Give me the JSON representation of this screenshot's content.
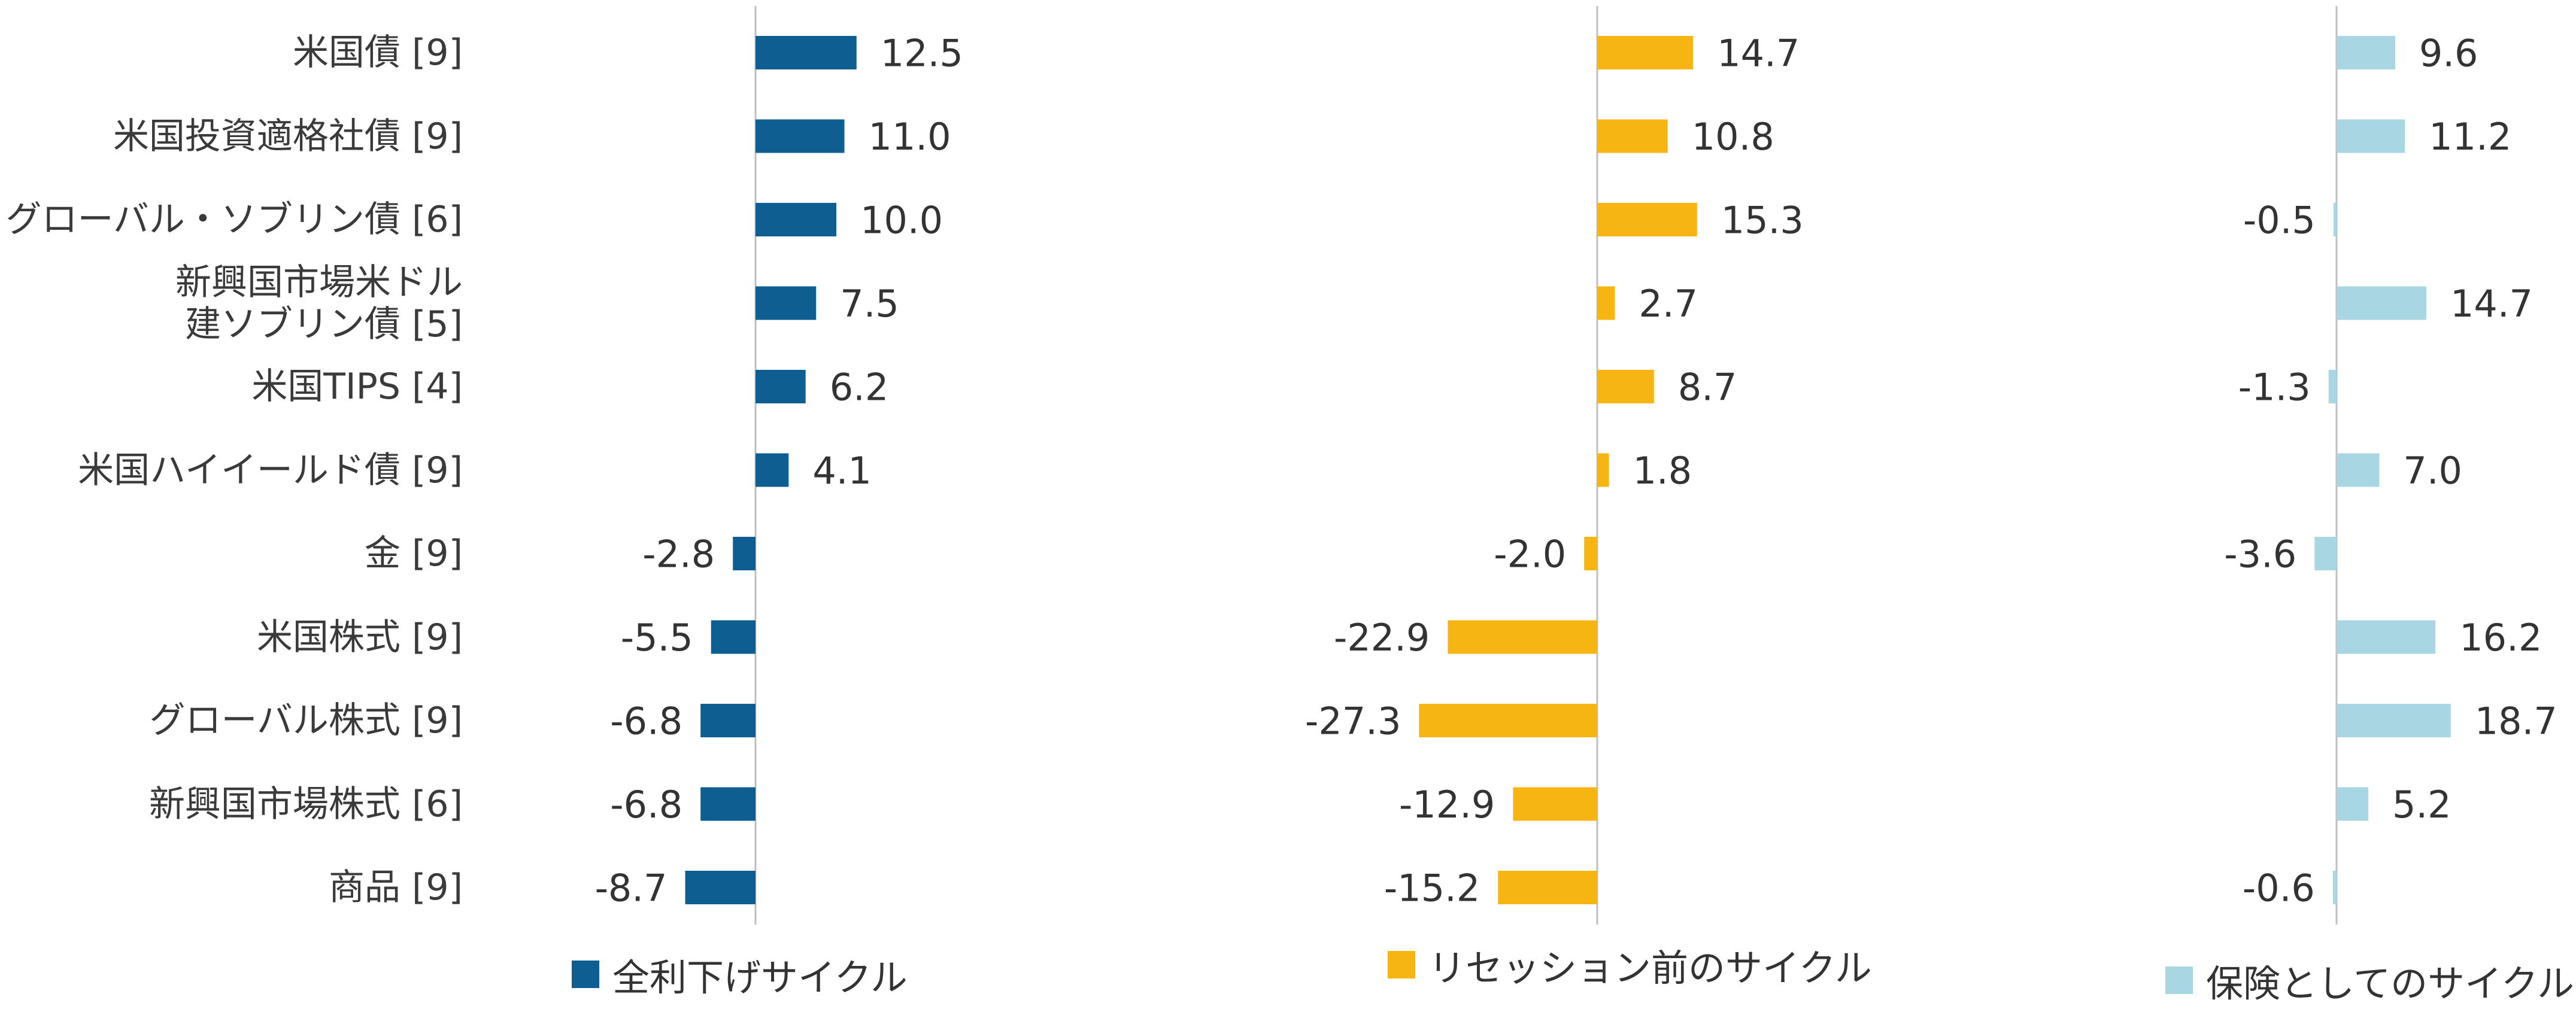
{
  "chart_data": {
    "type": "bar",
    "orientation": "horizontal",
    "categories": [
      "米国債 [9]",
      "米国投資適格社債 [9]",
      "グローバル・ソブリン債 [6]",
      "新興国市場米ドル建ソブリン債 [5]",
      "米国TIPS [4]",
      "米国ハイイールド債 [9]",
      "金 [9]",
      "米国株式 [9]",
      "グローバル株式 [9]",
      "新興国市場株式 [6]",
      "商品 [9]"
    ],
    "category_lines": [
      [
        "米国債 [9]"
      ],
      [
        "米国投資適格社債 [9]"
      ],
      [
        "グローバル・ソブリン債 [6]"
      ],
      [
        "新興国市場米ドル",
        "建ソブリン債 [5]"
      ],
      [
        "米国TIPS [4]"
      ],
      [
        "米国ハイイールド債 [9]"
      ],
      [
        "金 [9]"
      ],
      [
        "米国株式 [9]"
      ],
      [
        "グローバル株式 [9]"
      ],
      [
        "新興国市場株式 [6]"
      ],
      [
        "商品 [9]"
      ]
    ],
    "series": [
      {
        "name": "全利下げサイクル",
        "color": "#0F5E92",
        "values": [
          12.5,
          11.0,
          10.0,
          7.5,
          6.2,
          4.1,
          -2.8,
          -5.5,
          -6.8,
          -6.8,
          -8.7
        ],
        "labels": [
          "12.5",
          "11.0",
          "10.0",
          "7.5",
          "6.2",
          "4.1",
          "-2.8",
          "-5.5",
          "-6.8",
          "-6.8",
          "-8.7"
        ]
      },
      {
        "name": "リセッション前のサイクル",
        "color": "#F7B514",
        "values": [
          14.7,
          10.8,
          15.3,
          2.7,
          8.7,
          1.8,
          -2.0,
          -22.9,
          -27.3,
          -12.9,
          -15.2
        ],
        "labels": [
          "14.7",
          "10.8",
          "15.3",
          "2.7",
          "8.7",
          "1.8",
          "-2.0",
          "-22.9",
          "-27.3",
          "-12.9",
          "-15.2"
        ]
      },
      {
        "name": "保険としてのサイクル",
        "color": "#A9D6E3",
        "values": [
          9.6,
          11.2,
          -0.5,
          14.7,
          -1.3,
          7.0,
          -3.6,
          16.2,
          18.7,
          5.2,
          -0.6
        ],
        "labels": [
          "9.6",
          "11.2",
          "-0.5",
          "14.7",
          "-1.3",
          "7.0",
          "-3.6",
          "16.2",
          "18.7",
          "5.2",
          "-0.6"
        ]
      }
    ],
    "axis_color": "#BFBFBF",
    "label_color": "#333333",
    "legend": "bottom",
    "grid": false
  }
}
